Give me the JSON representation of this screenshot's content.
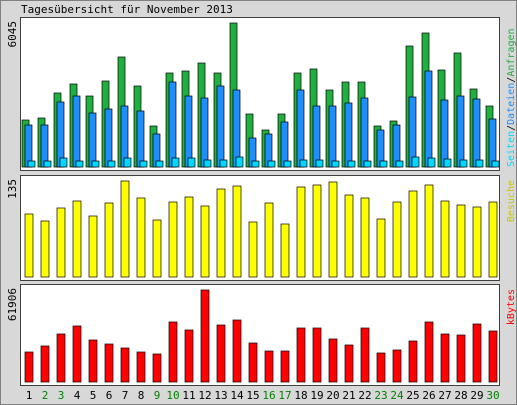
{
  "colors": {
    "background": "#d8d8d8",
    "panel": "#ffffff",
    "anfragen": "#1fb040",
    "dateien": "#1e8fff",
    "seiten": "#00d8ff",
    "besuche": "#ffff00",
    "kbytes": "#ff0000",
    "weekday_label": "#000000",
    "weekend_label": "#008000"
  },
  "chart_data": [
    {
      "type": "bar",
      "title": "Tagesübersicht für November 2013",
      "categories": [
        "1",
        "2",
        "3",
        "4",
        "5",
        "6",
        "7",
        "8",
        "9",
        "10",
        "11",
        "12",
        "13",
        "14",
        "15",
        "16",
        "17",
        "18",
        "19",
        "20",
        "21",
        "22",
        "23",
        "24",
        "25",
        "26",
        "27",
        "28",
        "29",
        "30"
      ],
      "weekend_categories": [
        "2",
        "3",
        "9",
        "10",
        "16",
        "17",
        "23",
        "24",
        "30"
      ],
      "ytick_labels": [
        "6045"
      ],
      "ylim": [
        0,
        6045
      ],
      "legend_separator": "/",
      "series": [
        {
          "name": "Anfragen",
          "values": [
            1973,
            2057,
            3106,
            3484,
            2980,
            3610,
            4618,
            3400,
            1721,
            3946,
            4030,
            4366,
            3946,
            6045,
            2225,
            1553,
            2225,
            3946,
            4114,
            3232,
            3568,
            3568,
            1721,
            1931,
            5079,
            5625,
            4072,
            4786,
            3274,
            2561
          ]
        },
        {
          "name": "Dateien",
          "values": [
            1763,
            1763,
            2729,
            2980,
            2267,
            2435,
            2561,
            2351,
            1385,
            3568,
            2980,
            2897,
            3400,
            3232,
            1217,
            1385,
            1889,
            3232,
            2561,
            2561,
            2687,
            2897,
            1553,
            1763,
            2939,
            4030,
            2813,
            2980,
            2855,
            2015
          ]
        },
        {
          "name": "Seiten",
          "values": [
            250,
            250,
            390,
            270,
            250,
            260,
            380,
            270,
            250,
            390,
            360,
            280,
            300,
            400,
            240,
            240,
            250,
            290,
            300,
            260,
            260,
            270,
            240,
            250,
            420,
            380,
            320,
            290,
            300,
            250
          ]
        }
      ]
    },
    {
      "type": "bar",
      "ytick_labels": [
        "135"
      ],
      "ylim": [
        0,
        135
      ],
      "series": [
        {
          "name": "Besuche",
          "values": [
            89,
            79,
            97,
            107,
            86,
            104,
            135,
            111,
            80,
            105,
            113,
            100,
            124,
            128,
            77,
            104,
            75,
            127,
            129,
            134,
            115,
            111,
            82,
            105,
            121,
            129,
            107,
            101,
            98,
            105
          ]
        }
      ]
    },
    {
      "type": "bar",
      "ytick_labels": [
        "61906"
      ],
      "ylim": [
        0,
        61906
      ],
      "series": [
        {
          "name": "kBytes",
          "values": [
            20187,
            24224,
            32299,
            37682,
            28262,
            25570,
            22879,
            20187,
            18841,
            40374,
            34991,
            61906,
            38355,
            41720,
            26243,
            20860,
            20860,
            36336,
            36336,
            28935,
            24897,
            36336,
            19514,
            21533,
            27589,
            40374,
            32299,
            31626,
            39028,
            34318
          ]
        }
      ]
    }
  ]
}
